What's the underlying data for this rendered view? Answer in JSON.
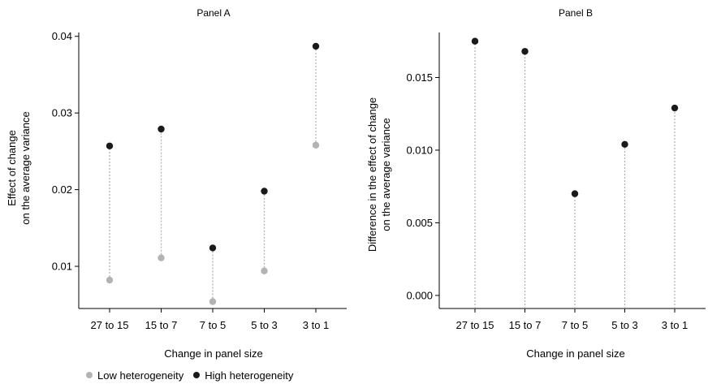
{
  "colors": {
    "low": "#b3b3b3",
    "high": "#1a1a1a",
    "connector": "#b3b3b3"
  },
  "legend": [
    {
      "label": "Low heterogeneity",
      "color": "#b3b3b3"
    },
    {
      "label": "High heterogeneity",
      "color": "#1a1a1a"
    }
  ],
  "chart_data": [
    {
      "type": "scatter",
      "title": "Panel A",
      "xlabel": "Change in panel size",
      "ylabel": [
        "Effect of change",
        "on the average variance"
      ],
      "categories": [
        "27 to 15",
        "15 to 7",
        "7 to 5",
        "5 to 3",
        "3 to 1"
      ],
      "ylim": [
        0.0045,
        0.0405
      ],
      "yticks": [
        0.01,
        0.02,
        0.03,
        0.04
      ],
      "ytick_labels": [
        "0.01",
        "0.02",
        "0.03",
        "0.04"
      ],
      "series": [
        {
          "name": "Low heterogeneity",
          "color_key": "low",
          "values": [
            0.0082,
            0.0111,
            0.0054,
            0.0094,
            0.0258
          ]
        },
        {
          "name": "High heterogeneity",
          "color_key": "high",
          "values": [
            0.0257,
            0.0279,
            0.0124,
            0.0198,
            0.0387
          ]
        }
      ],
      "connectors": "between-series",
      "grid": false
    },
    {
      "type": "scatter",
      "title": "Panel B",
      "xlabel": "Change in panel size",
      "ylabel": [
        "Difference in the effect of change",
        "on the average variance"
      ],
      "categories": [
        "27 to 15",
        "15 to 7",
        "7 to 5",
        "5 to 3",
        "3 to 1"
      ],
      "ylim": [
        -0.0009,
        0.0181
      ],
      "yticks": [
        0.0,
        0.005,
        0.01,
        0.015
      ],
      "ytick_labels": [
        "0.000",
        "0.005",
        "0.010",
        "0.015"
      ],
      "series": [
        {
          "color_key": "high",
          "values": [
            0.0175,
            0.0168,
            0.007,
            0.0104,
            0.0129
          ]
        }
      ],
      "connectors": "to-zero",
      "grid": false
    }
  ]
}
